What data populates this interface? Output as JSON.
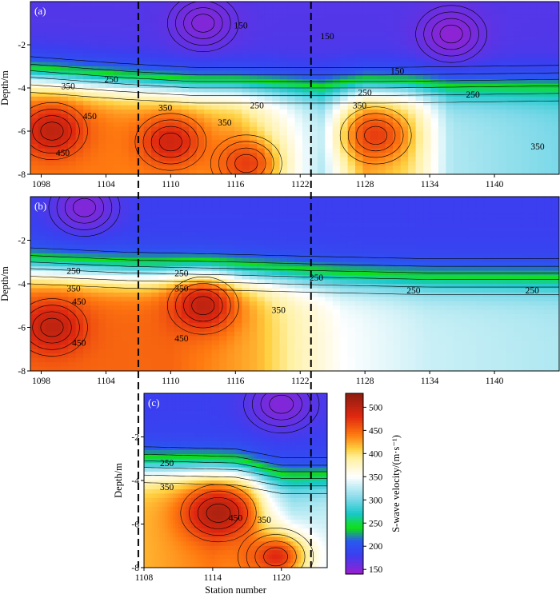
{
  "chart_data": {
    "type": "heatmap",
    "colormap": {
      "stops": [
        [
          140,
          "#9a1fd0"
        ],
        [
          180,
          "#3b3ff0"
        ],
        [
          210,
          "#2a58f0"
        ],
        [
          240,
          "#10e018"
        ],
        [
          270,
          "#18c8c8"
        ],
        [
          300,
          "#7ad8e8"
        ],
        [
          350,
          "#ffffff"
        ],
        [
          390,
          "#fff0a0"
        ],
        [
          410,
          "#ffd040"
        ],
        [
          440,
          "#ff7a10"
        ],
        [
          480,
          "#e02810"
        ],
        [
          530,
          "#8a1e10"
        ]
      ]
    },
    "colorbar": {
      "label": "S-wave velocity/(m·s⁻¹)",
      "ticks": [
        150,
        200,
        250,
        300,
        350,
        400,
        450,
        500
      ],
      "range": [
        140,
        530
      ]
    },
    "panels": [
      {
        "id": "a",
        "label": "(a)",
        "xlim": [
          1097,
          1146
        ],
        "ylim": [
          -8,
          0
        ],
        "xticks": [
          1098,
          1104,
          1110,
          1116,
          1122,
          1128,
          1134,
          1140
        ],
        "yticks": [
          -2,
          -4,
          -6,
          -8
        ],
        "ylabel": "Depth/m",
        "xlabel": "",
        "layers": {
          "shallow": 170,
          "interface_depth": [
            [
              1097,
              -3.5
            ],
            [
              1105,
              -3.8
            ],
            [
              1112,
              -4.0
            ],
            [
              1120,
              -4.0
            ],
            [
              1124,
              -4.0
            ],
            [
              1130,
              -4.0
            ],
            [
              1146,
              -3.9
            ]
          ],
          "deep_velocity": [
            [
              1097,
              440
            ],
            [
              1104,
              440
            ],
            [
              1110,
              430
            ],
            [
              1116,
              420
            ],
            [
              1120,
              370
            ],
            [
              1124,
              320
            ],
            [
              1128,
              420
            ],
            [
              1132,
              400
            ],
            [
              1136,
              320
            ],
            [
              1146,
              300
            ]
          ]
        },
        "anomalies": [
          {
            "x": 1099,
            "y": -6,
            "v": 500
          },
          {
            "x": 1110,
            "y": -6.5,
            "v": 490
          },
          {
            "x": 1117,
            "y": -7.5,
            "v": 470
          },
          {
            "x": 1129,
            "y": -6.2,
            "v": 470
          },
          {
            "x": 1113,
            "y": -1,
            "v": 150
          },
          {
            "x": 1136,
            "y": -1.5,
            "v": 145
          }
        ],
        "contour_labels": [
          {
            "x": 1116.5,
            "y": -1.1,
            "text": "150"
          },
          {
            "x": 1124.5,
            "y": -1.6,
            "text": "150"
          },
          {
            "x": 1131,
            "y": -3.2,
            "text": "150"
          },
          {
            "x": 1104.5,
            "y": -3.6,
            "text": "250"
          },
          {
            "x": 1118,
            "y": -4.8,
            "text": "250"
          },
          {
            "x": 1128,
            "y": -4.2,
            "text": "250"
          },
          {
            "x": 1138,
            "y": -4.3,
            "text": "250"
          },
          {
            "x": 1100.5,
            "y": -3.9,
            "text": "350"
          },
          {
            "x": 1109.5,
            "y": -4.9,
            "text": "350"
          },
          {
            "x": 1115,
            "y": -5.6,
            "text": "350"
          },
          {
            "x": 1127.5,
            "y": -4.8,
            "text": "350"
          },
          {
            "x": 1144,
            "y": -6.7,
            "text": "350"
          },
          {
            "x": 1102.5,
            "y": -5.3,
            "text": "450"
          },
          {
            "x": 1100,
            "y": -7,
            "text": "450"
          }
        ]
      },
      {
        "id": "b",
        "label": "(b)",
        "xlim": [
          1097,
          1146
        ],
        "ylim": [
          -8,
          0
        ],
        "xticks": [
          1098,
          1104,
          1110,
          1116,
          1122,
          1128,
          1134,
          1140
        ],
        "yticks": [
          -2,
          -4,
          -6,
          -8
        ],
        "ylabel": "Depth/m",
        "xlabel": "",
        "layers": {
          "shallow": 180,
          "interface_depth": [
            [
              1097,
              -3.3
            ],
            [
              1106,
              -3.5
            ],
            [
              1116,
              -3.6
            ],
            [
              1124,
              -3.7
            ],
            [
              1134,
              -3.8
            ],
            [
              1146,
              -3.8
            ]
          ],
          "deep_velocity": [
            [
              1097,
              450
            ],
            [
              1104,
              450
            ],
            [
              1110,
              450
            ],
            [
              1118,
              420
            ],
            [
              1122,
              380
            ],
            [
              1126,
              350
            ],
            [
              1134,
              330
            ],
            [
              1146,
              320
            ]
          ]
        },
        "anomalies": [
          {
            "x": 1099,
            "y": -6,
            "v": 500
          },
          {
            "x": 1113,
            "y": -5,
            "v": 500
          },
          {
            "x": 1102,
            "y": -0.5,
            "v": 150
          }
        ],
        "contour_labels": [
          {
            "x": 1101,
            "y": -3.4,
            "text": "250"
          },
          {
            "x": 1111,
            "y": -3.5,
            "text": "250"
          },
          {
            "x": 1123.5,
            "y": -3.7,
            "text": "250"
          },
          {
            "x": 1132.5,
            "y": -4.3,
            "text": "250"
          },
          {
            "x": 1143.5,
            "y": -4.3,
            "text": "250"
          },
          {
            "x": 1101,
            "y": -4.2,
            "text": "350"
          },
          {
            "x": 1111,
            "y": -4.2,
            "text": "350"
          },
          {
            "x": 1120,
            "y": -5.2,
            "text": "350"
          },
          {
            "x": 1101.5,
            "y": -4.8,
            "text": "450"
          },
          {
            "x": 1101.5,
            "y": -6.7,
            "text": "450"
          },
          {
            "x": 1111,
            "y": -6.5,
            "text": "450"
          }
        ]
      },
      {
        "id": "c",
        "label": "(c)",
        "xlim": [
          1108,
          1124
        ],
        "ylim": [
          -8,
          0
        ],
        "xticks": [
          1108,
          1114,
          1120
        ],
        "yticks": [
          -2,
          -4,
          -6,
          -8
        ],
        "ylabel": "Depth/m",
        "xlabel": "Station number",
        "layers": {
          "shallow": 180,
          "interface_depth": [
            [
              1108,
              -3.4
            ],
            [
              1116,
              -3.5
            ],
            [
              1120,
              -3.9
            ],
            [
              1124,
              -3.9
            ]
          ],
          "deep_velocity": [
            [
              1108,
              420
            ],
            [
              1114,
              440
            ],
            [
              1117,
              420
            ],
            [
              1119,
              350
            ],
            [
              1121,
              320
            ],
            [
              1124,
              330
            ]
          ]
        },
        "anomalies": [
          {
            "x": 1114.5,
            "y": -5.5,
            "v": 510
          },
          {
            "x": 1119.5,
            "y": -7.5,
            "v": 480
          },
          {
            "x": 1120,
            "y": -0.5,
            "v": 150
          }
        ],
        "contour_labels": [
          {
            "x": 1110,
            "y": -3.2,
            "text": "250"
          },
          {
            "x": 1110,
            "y": -4.3,
            "text": "350"
          },
          {
            "x": 1116,
            "y": -5.7,
            "text": "450"
          },
          {
            "x": 1118.5,
            "y": -5.8,
            "text": "350"
          }
        ]
      }
    ],
    "dashed_lines_x": [
      1107,
      1123
    ]
  }
}
